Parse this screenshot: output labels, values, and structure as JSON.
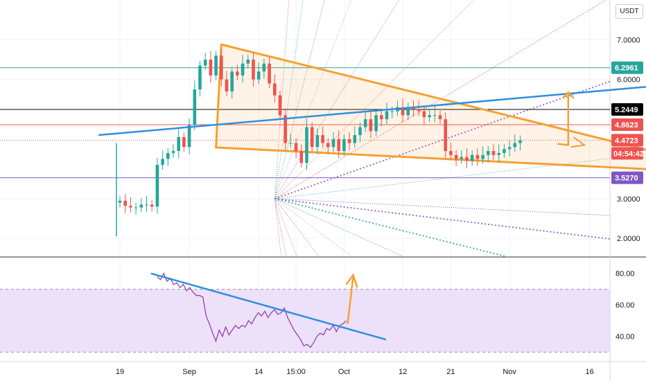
{
  "currency": "USDT",
  "countdown": "04:54:42",
  "colors": {
    "up": "#26a69a",
    "down": "#ef5350",
    "triangle": "#f5a031",
    "trendline": "#2f8fde",
    "rsi": "#8e44ad",
    "rsi_band": "#e9d8f7"
  },
  "chart_data": [
    {
      "type": "candlestick",
      "title": "",
      "y_ticks": [
        "7.0000",
        "6.0000",
        "3.0000",
        "2.0000"
      ],
      "y_tick_values": [
        7.0,
        6.0,
        3.0,
        2.0
      ],
      "x_ticks": [
        "19",
        "Sep",
        "14",
        "15:00",
        "Oct",
        "12",
        "21",
        "Nov",
        "16"
      ],
      "x_tick_values": [
        0,
        13,
        26,
        33,
        42,
        53,
        62,
        73,
        88
      ],
      "ylim": [
        1.55,
        8.0
      ],
      "grid": true,
      "price_tags": [
        {
          "label": "6.2961",
          "value": 6.2961,
          "color": "#26a69a"
        },
        {
          "label": "5.2449",
          "value": 5.2449,
          "color": "#000000"
        },
        {
          "label": "4.8623",
          "value": 4.8623,
          "color": "#ef5350"
        },
        {
          "label": "4.4723",
          "value": 4.4723,
          "color": "#ef5350"
        },
        {
          "label": "3.5270",
          "value": 3.527,
          "color": "#7e57c2"
        }
      ],
      "horizontal_lines": [
        {
          "value": 6.2961,
          "color": "#26a69a",
          "style": "solid"
        },
        {
          "value": 5.2449,
          "color": "#000000",
          "style": "solid"
        },
        {
          "value": 4.8623,
          "color": "#ef5350",
          "style": "solid"
        },
        {
          "value": 4.4723,
          "color": "#ef5350",
          "style": "dotted"
        },
        {
          "value": 3.527,
          "color": "#7e57c2",
          "style": "solid"
        }
      ],
      "close_series": [
        2.95,
        2.82,
        2.78,
        2.78,
        2.85,
        2.85,
        2.8,
        3.85,
        4.0,
        4.15,
        4.2,
        4.55,
        4.3,
        4.85,
        5.75,
        6.35,
        6.5,
        6.1,
        6.6,
        6.0,
        5.7,
        6.2,
        6.1,
        6.4,
        6.5,
        6.0,
        6.2,
        6.4,
        5.9,
        5.6,
        5.1,
        4.4,
        4.4,
        4.2,
        3.9,
        4.8,
        4.3,
        4.6,
        4.4,
        4.3,
        4.5,
        4.2,
        4.5,
        4.4,
        4.6,
        4.8,
        5.0,
        4.7,
        5.1,
        5.0,
        5.2,
        5.2,
        5.3,
        5.1,
        5.3,
        5.25,
        5.2,
        5.05,
        5.1,
        5.1,
        5.0,
        4.2,
        4.1,
        4.0,
        4.05,
        3.95,
        4.1,
        4.0,
        4.1,
        4.2,
        4.1,
        4.15,
        4.25,
        4.3,
        4.4,
        4.47
      ],
      "triangle": [
        {
          "x": 19,
          "y": 6.88
        },
        {
          "x": 117,
          "y": 3.62
        },
        {
          "x": 18,
          "y": 4.29
        }
      ],
      "trendline": [
        {
          "x": -4,
          "y": 4.6
        },
        {
          "x": 110,
          "y": 5.95
        }
      ],
      "fan_origin": {
        "x": 29,
        "y": 3.0
      }
    },
    {
      "type": "line",
      "title": "",
      "y_ticks": [
        "80.00",
        "60.00",
        "40.00"
      ],
      "y_tick_values": [
        80,
        60,
        40
      ],
      "ylim": [
        24,
        90
      ],
      "band": [
        30,
        70
      ],
      "values": [
        78,
        76,
        80,
        75,
        77,
        73,
        74,
        71,
        73,
        69,
        71,
        68,
        66,
        66,
        65,
        53,
        48,
        42,
        37,
        44,
        40,
        46,
        41,
        44,
        47,
        45,
        47,
        46,
        50,
        48,
        52,
        55,
        53,
        56,
        52,
        55,
        57,
        54,
        55,
        58,
        52,
        48,
        44,
        41,
        38,
        34,
        35,
        33,
        36,
        40,
        42,
        41,
        45,
        44,
        47,
        43,
        47,
        48,
        50
      ],
      "trendline": [
        {
          "x": 11,
          "y": 80
        },
        {
          "x": 100,
          "y": 38
        }
      ]
    }
  ]
}
